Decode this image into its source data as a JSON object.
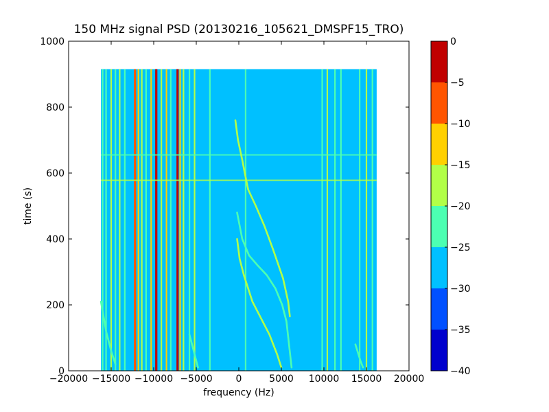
{
  "figure": {
    "title": "150 MHz signal PSD (20130216_105621_DMSPF15_TRO)"
  },
  "chart_data": {
    "type": "heatmap",
    "title": "150 MHz signal PSD (20130216_105621_DMSPF15_TRO)",
    "xlabel": "frequency (Hz)",
    "ylabel": "time (s)",
    "xlim": [
      -20000,
      20000
    ],
    "ylim": [
      0,
      1000
    ],
    "x_ticks": [
      -20000,
      -15000,
      -10000,
      -5000,
      0,
      5000,
      10000,
      15000,
      20000
    ],
    "x_tick_labels": [
      "−20000",
      "−15000",
      "−10000",
      "−5000",
      "0",
      "5000",
      "10000",
      "15000",
      "20000"
    ],
    "y_ticks": [
      0,
      200,
      400,
      600,
      800,
      1000
    ],
    "y_tick_labels": [
      "0",
      "200",
      "400",
      "600",
      "800",
      "1000"
    ],
    "data_extent": {
      "frequency_hz": [
        -16200,
        16200
      ],
      "time_s": [
        0,
        915
      ]
    },
    "background_level": -27.5,
    "colorbar": {
      "ticks": [
        0,
        -5,
        -10,
        -15,
        -20,
        -25,
        -30,
        -35,
        -40
      ],
      "tick_labels": [
        "0",
        "−5",
        "−10",
        "−15",
        "−20",
        "−25",
        "−30",
        "−35",
        "−40"
      ],
      "levels": [
        {
          "range": [
            -5,
            0
          ],
          "color": "#c00000"
        },
        {
          "range": [
            -10,
            -5
          ],
          "color": "#ff5500"
        },
        {
          "range": [
            -15,
            -10
          ],
          "color": "#ffd000"
        },
        {
          "range": [
            -20,
            -15
          ],
          "color": "#b2ff48"
        },
        {
          "range": [
            -25,
            -20
          ],
          "color": "#4cffb2"
        },
        {
          "range": [
            -30,
            -25
          ],
          "color": "#00c0ff"
        },
        {
          "range": [
            -35,
            -30
          ],
          "color": "#0050ff"
        },
        {
          "range": [
            -40,
            -35
          ],
          "color": "#0000cd"
        }
      ]
    },
    "vertical_lines": [
      {
        "freq": -16000,
        "level": -22.5
      },
      {
        "freq": -15600,
        "level": -22.5
      },
      {
        "freq": -15000,
        "level": -17.5
      },
      {
        "freq": -14500,
        "level": -22.5
      },
      {
        "freq": -14000,
        "level": -17.5
      },
      {
        "freq": -13400,
        "level": -22.5
      },
      {
        "freq": -12200,
        "level": -7.5
      },
      {
        "freq": -11800,
        "level": -12.5
      },
      {
        "freq": -11400,
        "level": -17.5
      },
      {
        "freq": -10900,
        "level": -22.5
      },
      {
        "freq": -10300,
        "level": -12.5
      },
      {
        "freq": -9700,
        "level": -2.5
      },
      {
        "freq": -9100,
        "level": -17.5
      },
      {
        "freq": -8500,
        "level": -12.5
      },
      {
        "freq": -8000,
        "level": -22.5
      },
      {
        "freq": -7200,
        "level": -2.5
      },
      {
        "freq": -6900,
        "level": -12.5
      },
      {
        "freq": -6500,
        "level": -17.5
      },
      {
        "freq": -5800,
        "level": -22.5
      },
      {
        "freq": -5200,
        "level": -17.5
      },
      {
        "freq": -3400,
        "level": -22.5
      },
      {
        "freq": 800,
        "level": -22.5
      },
      {
        "freq": 9800,
        "level": -22.5
      },
      {
        "freq": 10400,
        "level": -17.5
      },
      {
        "freq": 11300,
        "level": -22.5
      },
      {
        "freq": 12000,
        "level": -22.5
      },
      {
        "freq": 14200,
        "level": -22.5
      },
      {
        "freq": 15000,
        "level": -17.5
      },
      {
        "freq": 15700,
        "level": -22.5
      }
    ],
    "horizontal_lines": [
      {
        "time": 655,
        "level": -22.5
      },
      {
        "time": 578,
        "level": -17.5
      }
    ],
    "curves": [
      {
        "level": -17.5,
        "points": [
          [
            -400,
            760
          ],
          [
            -100,
            700
          ],
          [
            400,
            640
          ],
          [
            700,
            600
          ],
          [
            1100,
            550
          ],
          [
            2000,
            500
          ],
          [
            3000,
            440
          ],
          [
            4000,
            370
          ],
          [
            5200,
            280
          ],
          [
            5800,
            210
          ],
          [
            6000,
            165
          ]
        ]
      },
      {
        "level": -17.5,
        "points": [
          [
            -200,
            400
          ],
          [
            100,
            340
          ],
          [
            600,
            290
          ],
          [
            1100,
            250
          ],
          [
            1600,
            210
          ],
          [
            2600,
            160
          ],
          [
            3600,
            110
          ],
          [
            4500,
            50
          ],
          [
            5000,
            10
          ]
        ]
      },
      {
        "level": -22.5,
        "points": [
          [
            -200,
            480
          ],
          [
            400,
            400
          ],
          [
            1200,
            350
          ],
          [
            2200,
            320
          ],
          [
            3300,
            290
          ],
          [
            4300,
            250
          ],
          [
            5100,
            200
          ],
          [
            5600,
            150
          ],
          [
            6200,
            10
          ]
        ]
      },
      {
        "level": -22.5,
        "points": [
          [
            -16200,
            210
          ],
          [
            -15600,
            120
          ],
          [
            -15000,
            60
          ],
          [
            -14500,
            20
          ]
        ]
      },
      {
        "level": -22.5,
        "points": [
          [
            13700,
            80
          ],
          [
            14300,
            30
          ],
          [
            14600,
            10
          ]
        ]
      },
      {
        "level": -22.5,
        "points": [
          [
            -4800,
            10
          ],
          [
            -5300,
            60
          ],
          [
            -5800,
            110
          ]
        ]
      }
    ]
  }
}
